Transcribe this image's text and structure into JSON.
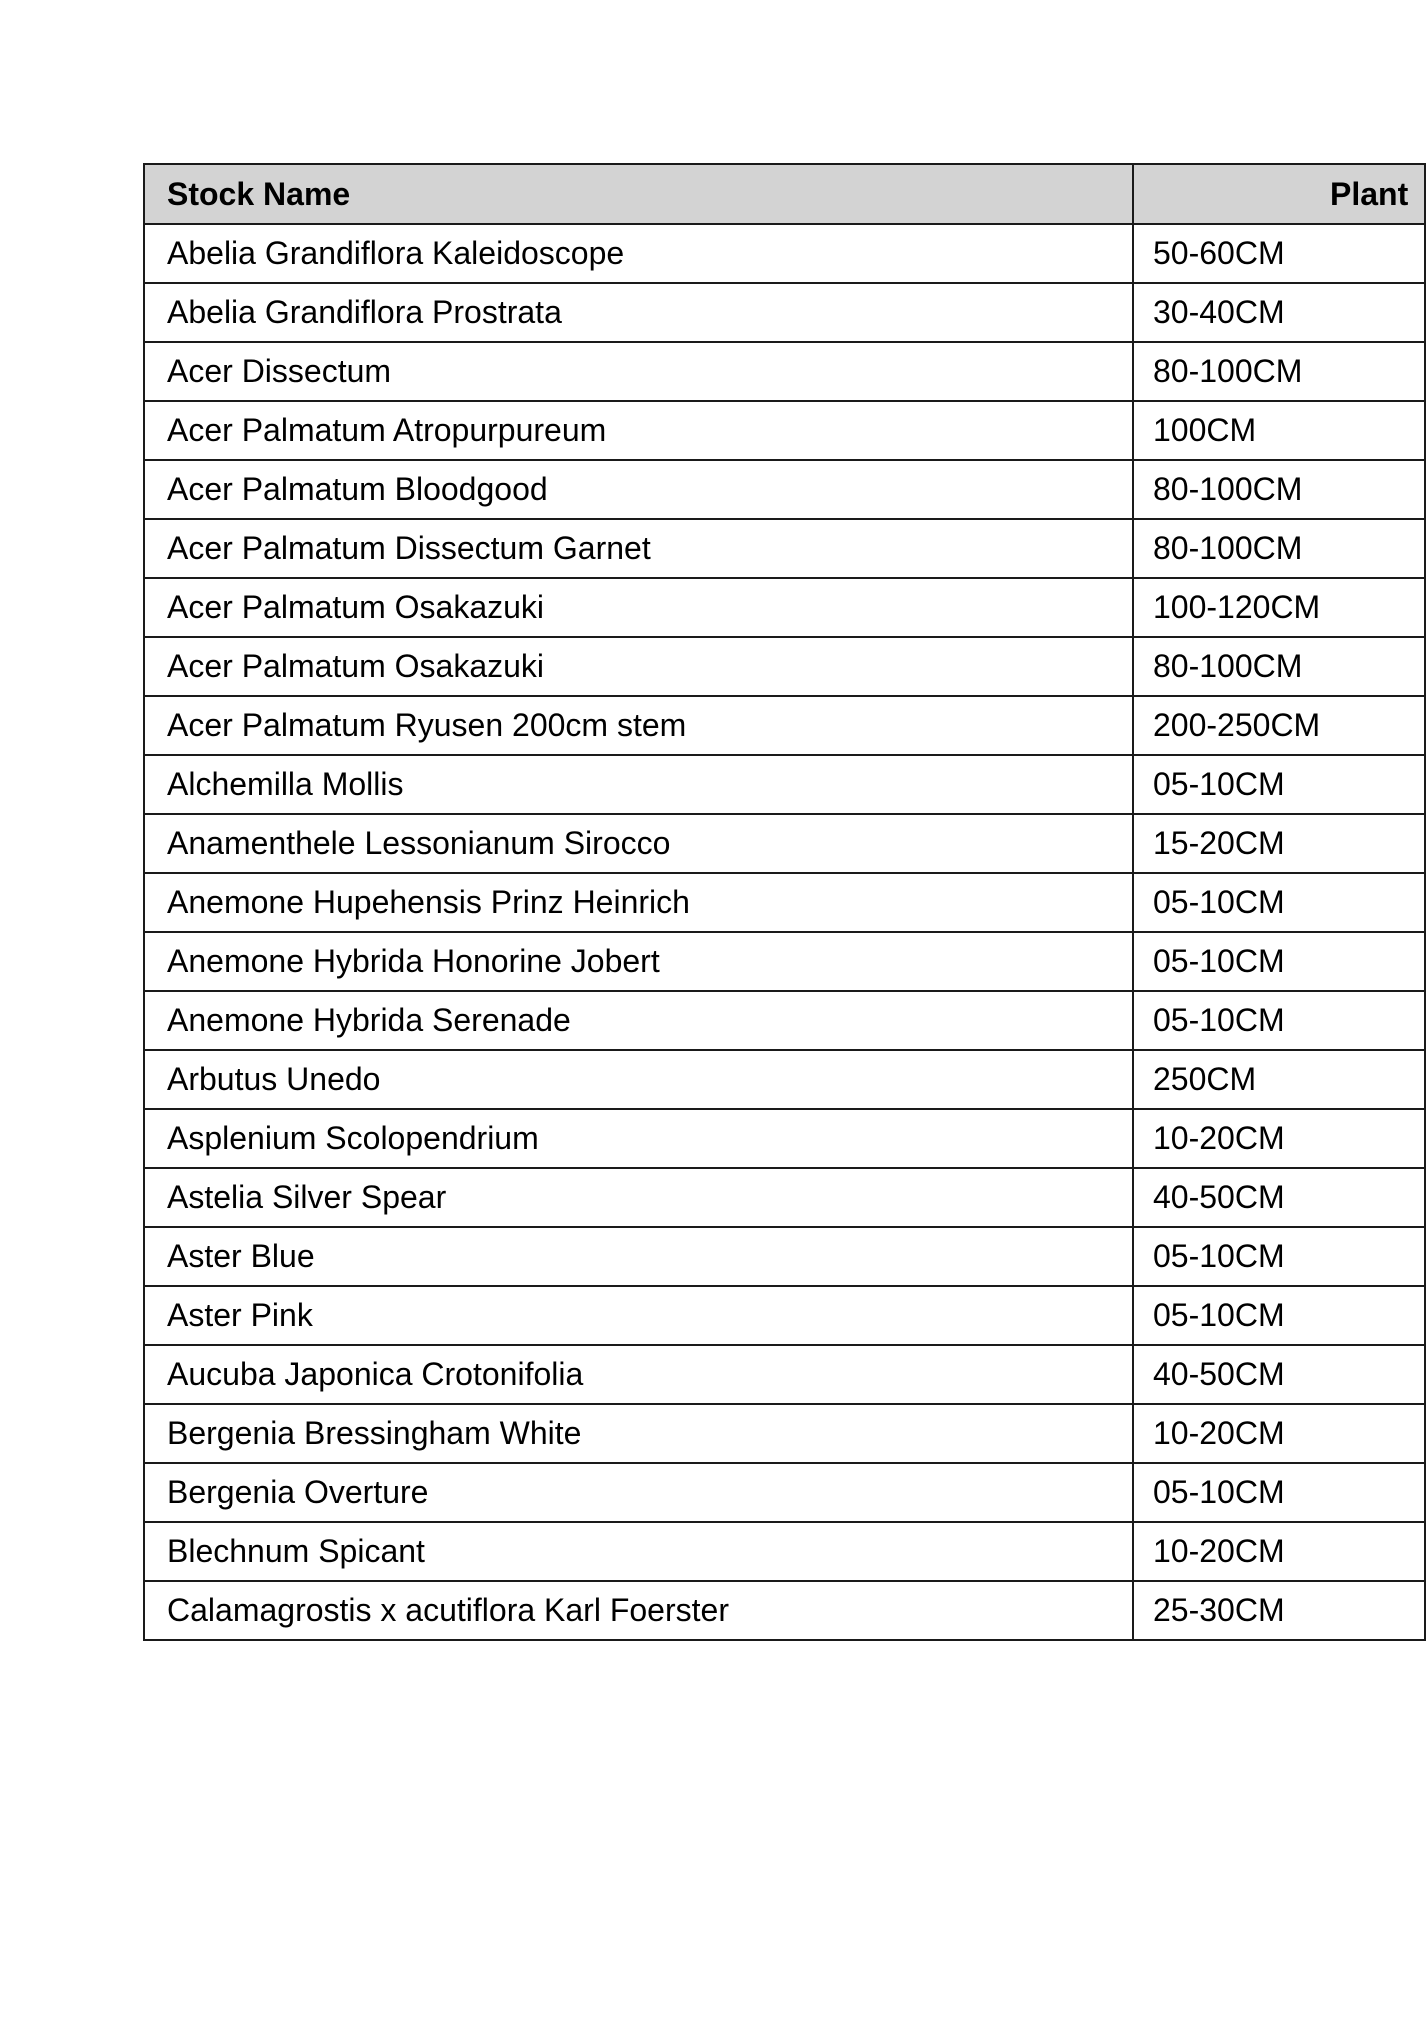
{
  "table": {
    "headers": [
      "Stock Name",
      "Plant"
    ],
    "rows": [
      [
        "Abelia Grandiflora Kaleidoscope",
        "50-60CM"
      ],
      [
        "Abelia Grandiflora Prostrata",
        "30-40CM"
      ],
      [
        "Acer Dissectum",
        "80-100CM"
      ],
      [
        "Acer Palmatum Atropurpureum",
        "100CM"
      ],
      [
        "Acer Palmatum Bloodgood",
        "80-100CM"
      ],
      [
        "Acer Palmatum Dissectum Garnet",
        "80-100CM"
      ],
      [
        "Acer Palmatum Osakazuki",
        "100-120CM"
      ],
      [
        "Acer Palmatum Osakazuki",
        "80-100CM"
      ],
      [
        "Acer Palmatum Ryusen 200cm stem",
        "200-250CM"
      ],
      [
        "Alchemilla Mollis",
        "05-10CM"
      ],
      [
        "Anamenthele Lessonianum Sirocco",
        "15-20CM"
      ],
      [
        "Anemone Hupehensis Prinz Heinrich",
        "05-10CM"
      ],
      [
        "Anemone Hybrida Honorine Jobert",
        "05-10CM"
      ],
      [
        "Anemone Hybrida Serenade",
        "05-10CM"
      ],
      [
        "Arbutus Unedo",
        "250CM"
      ],
      [
        "Asplenium Scolopendrium",
        "10-20CM"
      ],
      [
        "Astelia Silver Spear",
        "40-50CM"
      ],
      [
        "Aster Blue",
        "05-10CM"
      ],
      [
        "Aster Pink",
        "05-10CM"
      ],
      [
        "Aucuba Japonica Crotonifolia",
        "40-50CM"
      ],
      [
        "Bergenia Bressingham White",
        "10-20CM"
      ],
      [
        "Bergenia Overture",
        "05-10CM"
      ],
      [
        "Blechnum Spicant",
        "10-20CM"
      ],
      [
        "Calamagrostis x acutiflora Karl Foerster",
        "25-30CM"
      ]
    ]
  },
  "colors": {
    "header_bg": "#d3d3d3",
    "border": "#1a1a1a"
  }
}
